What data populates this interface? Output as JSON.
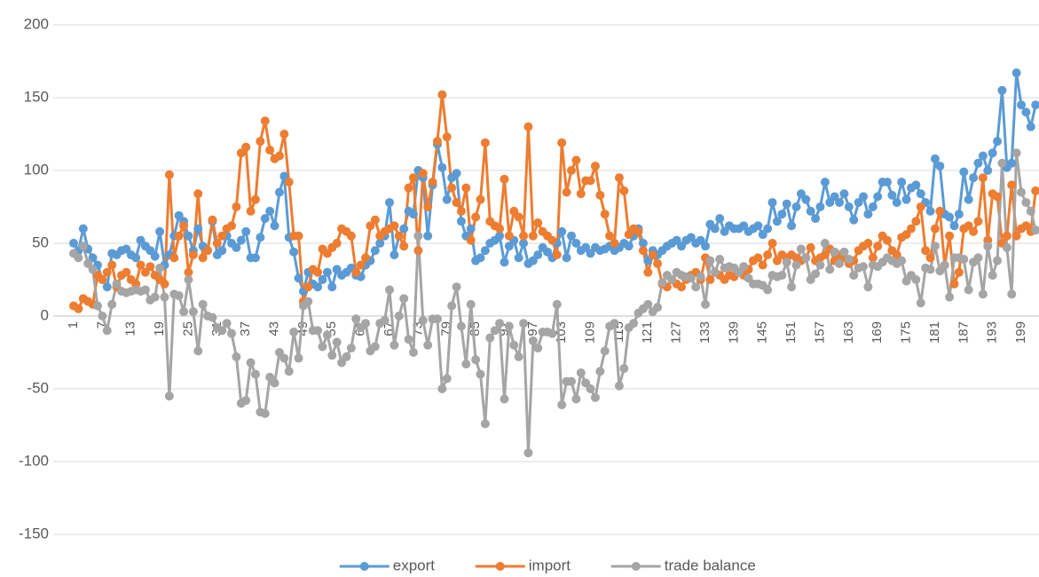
{
  "chart_data": {
    "type": "line",
    "categories": [
      1,
      null,
      null,
      null,
      null,
      null,
      7,
      null,
      null,
      null,
      null,
      null,
      13,
      null,
      null,
      null,
      null,
      null,
      19,
      null,
      null,
      null,
      null,
      null,
      25,
      null,
      null,
      null,
      null,
      null,
      31,
      null,
      null,
      null,
      null,
      null,
      37,
      null,
      null,
      null,
      null,
      null,
      43,
      null,
      null,
      null,
      null,
      null,
      49,
      null,
      null,
      null,
      null,
      null,
      55,
      null,
      null,
      null,
      null,
      null,
      61,
      null,
      null,
      null,
      null,
      null,
      67,
      null,
      null,
      null,
      null,
      null,
      73,
      null,
      null,
      null,
      null,
      null,
      79,
      null,
      null,
      null,
      null,
      null,
      85,
      null,
      null,
      null,
      null,
      null,
      91,
      null,
      null,
      null,
      null,
      null,
      97,
      null,
      null,
      null,
      null,
      null,
      103,
      null,
      null,
      null,
      null,
      null,
      109,
      null,
      null,
      null,
      null,
      null,
      115,
      null,
      null,
      null,
      null,
      null,
      121,
      null,
      null,
      null,
      null,
      null,
      127,
      null,
      null,
      null,
      null,
      null,
      133,
      null,
      null,
      null,
      null,
      null,
      139,
      null,
      null,
      null,
      null,
      null,
      145,
      null,
      null,
      null,
      null,
      null,
      151,
      null,
      null,
      null,
      null,
      null,
      157,
      null,
      null,
      null,
      null,
      null,
      163,
      null,
      null,
      null,
      null,
      null,
      169,
      null,
      null,
      null,
      null,
      null,
      175,
      null,
      null,
      null,
      null,
      null,
      181,
      null,
      null,
      null,
      null,
      null,
      187,
      null,
      null,
      null,
      null,
      null,
      193,
      null,
      null,
      null,
      null,
      null,
      199,
      null,
      null,
      null
    ],
    "series": [
      {
        "name": "export",
        "color": "#5b9bd5",
        "values": [
          50,
          45,
          60,
          46,
          40,
          35,
          25,
          20,
          43,
          42,
          45,
          46,
          42,
          40,
          52,
          48,
          45,
          41,
          58,
          35,
          42,
          55,
          69,
          65,
          55,
          45,
          60,
          48,
          45,
          65,
          42,
          45,
          55,
          50,
          47,
          52,
          58,
          40,
          40,
          54,
          67,
          72,
          62,
          85,
          96,
          54,
          44,
          26,
          17,
          30,
          22,
          20,
          25,
          30,
          20,
          32,
          28,
          30,
          33,
          28,
          27,
          35,
          38,
          45,
          50,
          55,
          78,
          42,
          55,
          60,
          72,
          70,
          100,
          95,
          55,
          90,
          118,
          102,
          80,
          95,
          98,
          65,
          55,
          60,
          38,
          40,
          45,
          50,
          52,
          55,
          37,
          48,
          52,
          40,
          50,
          36,
          38,
          42,
          47,
          44,
          40,
          50,
          58,
          40,
          55,
          50,
          45,
          47,
          43,
          47,
          45,
          46,
          48,
          45,
          47,
          50,
          48,
          55,
          60,
          50,
          38,
          45,
          42,
          45,
          48,
          50,
          52,
          48,
          52,
          54,
          50,
          52,
          48,
          63,
          60,
          67,
          58,
          62,
          60,
          60,
          62,
          58,
          60,
          62,
          56,
          60,
          78,
          65,
          70,
          77,
          62,
          75,
          84,
          80,
          72,
          67,
          75,
          92,
          78,
          82,
          78,
          84,
          75,
          66,
          78,
          82,
          70,
          75,
          82,
          92,
          92,
          83,
          78,
          92,
          80,
          88,
          90,
          84,
          78,
          72,
          108,
          103,
          70,
          68,
          62,
          70,
          99,
          80,
          95,
          105,
          110,
          100,
          112,
          120,
          155,
          102,
          105,
          167,
          145,
          140,
          130,
          145
        ]
      },
      {
        "name": "import",
        "color": "#ed7d31",
        "values": [
          7,
          5,
          12,
          10,
          8,
          28,
          25,
          30,
          35,
          20,
          28,
          30,
          25,
          22,
          35,
          30,
          34,
          28,
          25,
          22,
          97,
          40,
          55,
          62,
          30,
          42,
          84,
          40,
          45,
          66,
          50,
          55,
          60,
          62,
          75,
          112,
          116,
          72,
          80,
          120,
          134,
          114,
          108,
          110,
          125,
          92,
          55,
          55,
          10,
          20,
          32,
          30,
          46,
          43,
          47,
          50,
          60,
          58,
          55,
          30,
          35,
          40,
          62,
          66,
          55,
          58,
          60,
          62,
          55,
          48,
          88,
          95,
          45,
          98,
          75,
          92,
          120,
          152,
          123,
          88,
          78,
          72,
          88,
          52,
          68,
          80,
          119,
          65,
          62,
          60,
          94,
          55,
          72,
          68,
          55,
          130,
          55,
          64,
          58,
          55,
          52,
          42,
          119,
          85,
          100,
          107,
          84,
          93,
          93,
          103,
          83,
          70,
          55,
          50,
          95,
          86,
          56,
          60,
          58,
          45,
          30,
          42,
          36,
          22,
          20,
          25,
          22,
          20,
          25,
          28,
          30,
          25,
          40,
          25,
          30,
          28,
          25,
          28,
          27,
          30,
          28,
          32,
          38,
          40,
          35,
          42,
          50,
          38,
          42,
          40,
          42,
          40,
          38,
          40,
          47,
          38,
          40,
          42,
          46,
          38,
          42,
          40,
          36,
          38,
          45,
          48,
          50,
          40,
          48,
          55,
          52,
          45,
          42,
          54,
          56,
          60,
          65,
          75,
          45,
          40,
          60,
          72,
          35,
          55,
          22,
          30,
          60,
          62,
          58,
          65,
          95,
          52,
          84,
          82,
          50,
          55,
          90,
          55,
          60,
          62,
          58,
          86
        ]
      },
      {
        "name": "trade balance",
        "color": "#a5a5a5",
        "values": [
          43,
          40,
          48,
          36,
          32,
          7,
          0,
          -10,
          8,
          22,
          17,
          16,
          17,
          18,
          17,
          18,
          11,
          13,
          33,
          13,
          -55,
          15,
          14,
          3,
          25,
          3,
          -24,
          8,
          0,
          -1,
          -8,
          -10,
          -5,
          -12,
          -28,
          -60,
          -58,
          -32,
          -40,
          -66,
          -67,
          -42,
          -46,
          -25,
          -29,
          -38,
          -11,
          -29,
          7,
          10,
          -10,
          -10,
          -21,
          -13,
          -27,
          -18,
          -32,
          -28,
          -22,
          -2,
          -8,
          -5,
          -24,
          -21,
          -5,
          -3,
          18,
          -20,
          0,
          12,
          -16,
          -25,
          55,
          -3,
          -20,
          -2,
          -2,
          -50,
          -43,
          7,
          20,
          -7,
          -33,
          8,
          -30,
          -40,
          -74,
          -15,
          -10,
          -5,
          -57,
          -7,
          -20,
          -28,
          -5,
          -94,
          -17,
          -22,
          -11,
          -11,
          -12,
          8,
          -61,
          -45,
          -45,
          -57,
          -39,
          -46,
          -50,
          -56,
          -38,
          -24,
          -7,
          -5,
          -48,
          -36,
          -8,
          -5,
          2,
          5,
          8,
          3,
          6,
          23,
          28,
          25,
          30,
          28,
          27,
          26,
          20,
          27,
          8,
          38,
          30,
          39,
          33,
          34,
          33,
          30,
          34,
          26,
          22,
          22,
          21,
          18,
          28,
          27,
          28,
          37,
          20,
          35,
          46,
          40,
          25,
          29,
          35,
          50,
          32,
          44,
          36,
          44,
          39,
          28,
          33,
          34,
          20,
          35,
          34,
          37,
          40,
          38,
          36,
          38,
          24,
          28,
          25,
          9,
          33,
          32,
          48,
          31,
          35,
          13,
          40,
          40,
          39,
          18,
          37,
          40,
          15,
          48,
          28,
          38,
          105,
          47,
          15,
          112,
          85,
          78,
          72,
          59
        ]
      }
    ],
    "ylim": [
      -150,
      200
    ],
    "yticks": [
      -150,
      -100,
      -50,
      0,
      50,
      100,
      150,
      200
    ],
    "grid": true,
    "legend": "bottom"
  }
}
